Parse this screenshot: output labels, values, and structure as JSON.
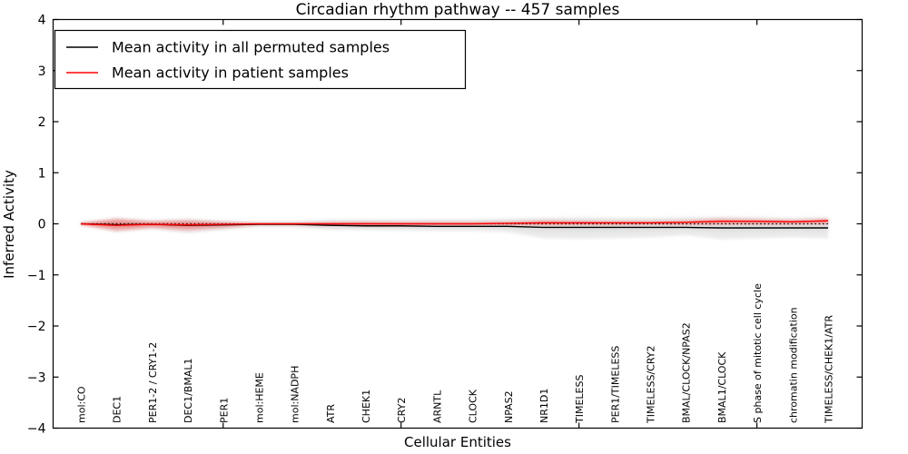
{
  "chart_data": {
    "type": "line",
    "title": "Circadian rhythm pathway -- 457 samples",
    "xlabel": "Cellular Entities",
    "ylabel": "Inferred Activity",
    "ylim": [
      -4,
      4
    ],
    "yticks": [
      4,
      3,
      2,
      1,
      0,
      -1,
      -2,
      -3,
      -4
    ],
    "x_major_tick_indices": [
      4,
      9,
      14,
      19
    ],
    "grid": false,
    "legend_position": "upper left",
    "background": "#ffffff",
    "categories": [
      "mol:CO",
      "DEC1",
      "PER1-2 / CRY1-2",
      "DEC1/BMAL1",
      "PER1",
      "mol:HEME",
      "mol:NADPH",
      "ATR",
      "CHEK1",
      "CRY2",
      "ARNTL",
      "CLOCK",
      "NPAS2",
      "NR1D1",
      "TIMELESS",
      "PER1/TIMELESS",
      "TIMELESS/CRY2",
      "BMAL/CLOCK/NPAS2",
      "BMAL1/CLOCK",
      "S phase of mitotic cell cycle",
      "chromatin modification",
      "TIMELESS/CHEK1/ATR"
    ],
    "series": [
      {
        "name": "Mean activity in all permuted samples",
        "color": "#000000",
        "style": "solid",
        "values": [
          0.0,
          -0.02,
          -0.01,
          -0.03,
          -0.02,
          -0.01,
          -0.01,
          -0.03,
          -0.04,
          -0.04,
          -0.05,
          -0.05,
          -0.05,
          -0.07,
          -0.07,
          -0.07,
          -0.07,
          -0.07,
          -0.08,
          -0.08,
          -0.08,
          -0.08
        ]
      },
      {
        "name": "Mean activity in patient samples",
        "color": "#ff0000",
        "style": "solid",
        "values": [
          0.0,
          -0.03,
          -0.01,
          -0.02,
          -0.01,
          0.0,
          0.0,
          0.0,
          0.0,
          0.0,
          0.0,
          0.0,
          0.01,
          0.02,
          0.02,
          0.02,
          0.02,
          0.03,
          0.05,
          0.05,
          0.04,
          0.06
        ]
      }
    ],
    "bands": [
      {
        "name": "permuted samples range",
        "color": "#d9d9d9",
        "opacity": 0.55,
        "upper": [
          0.02,
          0.12,
          0.07,
          0.1,
          0.06,
          0.03,
          0.04,
          0.08,
          0.08,
          0.08,
          0.09,
          0.09,
          0.1,
          0.12,
          0.13,
          0.12,
          0.12,
          0.13,
          0.14,
          0.13,
          0.12,
          0.13
        ],
        "lower": [
          -0.02,
          -0.16,
          -0.1,
          -0.18,
          -0.12,
          -0.05,
          -0.06,
          -0.12,
          -0.12,
          -0.13,
          -0.14,
          -0.14,
          -0.16,
          -0.28,
          -0.29,
          -0.28,
          -0.26,
          -0.22,
          -0.3,
          -0.28,
          -0.26,
          -0.28
        ]
      },
      {
        "name": "patient samples range",
        "color": "#ff0000",
        "opacity": 0.22,
        "upper": [
          0.02,
          0.1,
          0.05,
          0.07,
          0.03,
          0.01,
          0.01,
          0.02,
          0.03,
          0.02,
          0.02,
          0.02,
          0.03,
          0.06,
          0.05,
          0.04,
          0.04,
          0.06,
          0.1,
          0.09,
          0.07,
          0.1
        ],
        "lower": [
          -0.02,
          -0.14,
          -0.08,
          -0.13,
          -0.08,
          -0.02,
          -0.02,
          -0.03,
          -0.04,
          -0.04,
          -0.03,
          -0.03,
          -0.03,
          -0.02,
          -0.02,
          -0.02,
          -0.01,
          -0.01,
          0.0,
          0.0,
          0.0,
          0.01
        ]
      }
    ],
    "zero_line": {
      "value": 0,
      "color": "#000000",
      "style": "dotted"
    }
  }
}
